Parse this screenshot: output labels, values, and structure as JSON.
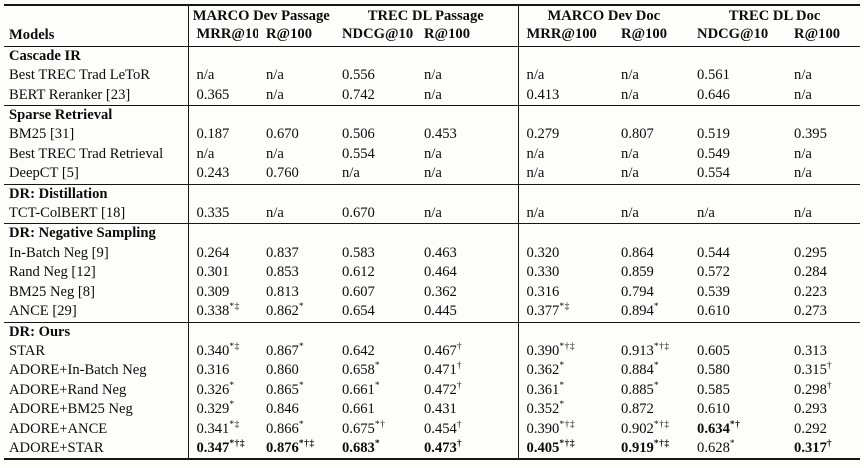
{
  "table": {
    "header": {
      "models_label": "Models",
      "groups": [
        {
          "label": "MARCO Dev Passage",
          "metrics": [
            "MRR@10",
            "R@100"
          ]
        },
        {
          "label": "TREC DL Passage",
          "metrics": [
            "NDCG@10",
            "R@100"
          ]
        },
        {
          "label": "MARCO Dev Doc",
          "metrics": [
            "MRR@100",
            "R@100"
          ]
        },
        {
          "label": "TREC DL Doc",
          "metrics": [
            "NDCG@10",
            "R@100"
          ]
        }
      ]
    },
    "sections": [
      {
        "title": "Cascade IR",
        "rows": [
          {
            "model": "Best TREC Trad LeToR",
            "cells": [
              {
                "v": "n/a"
              },
              {
                "v": "n/a"
              },
              {
                "v": "0.556"
              },
              {
                "v": "n/a"
              },
              {
                "v": "n/a"
              },
              {
                "v": "n/a"
              },
              {
                "v": "0.561"
              },
              {
                "v": "n/a"
              }
            ]
          },
          {
            "model": "BERT Reranker [23]",
            "cells": [
              {
                "v": "0.365"
              },
              {
                "v": "n/a"
              },
              {
                "v": "0.742"
              },
              {
                "v": "n/a"
              },
              {
                "v": "0.413"
              },
              {
                "v": "n/a"
              },
              {
                "v": "0.646"
              },
              {
                "v": "n/a"
              }
            ]
          }
        ]
      },
      {
        "title": "Sparse Retrieval",
        "rows": [
          {
            "model": "BM25 [31]",
            "cells": [
              {
                "v": "0.187"
              },
              {
                "v": "0.670"
              },
              {
                "v": "0.506"
              },
              {
                "v": "0.453"
              },
              {
                "v": "0.279"
              },
              {
                "v": "0.807"
              },
              {
                "v": "0.519"
              },
              {
                "v": "0.395"
              }
            ]
          },
          {
            "model": "Best TREC Trad Retrieval",
            "cells": [
              {
                "v": "n/a"
              },
              {
                "v": "n/a"
              },
              {
                "v": "0.554"
              },
              {
                "v": "n/a"
              },
              {
                "v": "n/a"
              },
              {
                "v": "n/a"
              },
              {
                "v": "0.549"
              },
              {
                "v": "n/a"
              }
            ]
          },
          {
            "model": "DeepCT [5]",
            "cells": [
              {
                "v": "0.243"
              },
              {
                "v": "0.760"
              },
              {
                "v": "n/a"
              },
              {
                "v": "n/a"
              },
              {
                "v": "n/a"
              },
              {
                "v": "n/a"
              },
              {
                "v": "0.554"
              },
              {
                "v": "n/a"
              }
            ]
          }
        ]
      },
      {
        "title": "DR: Distillation",
        "rows": [
          {
            "model": "TCT-ColBERT [18]",
            "cells": [
              {
                "v": "0.335"
              },
              {
                "v": "n/a"
              },
              {
                "v": "0.670"
              },
              {
                "v": "n/a"
              },
              {
                "v": "n/a"
              },
              {
                "v": "n/a"
              },
              {
                "v": "n/a"
              },
              {
                "v": "n/a"
              }
            ]
          }
        ]
      },
      {
        "title": "DR: Negative Sampling",
        "rows": [
          {
            "model": "In-Batch Neg [9]",
            "cells": [
              {
                "v": "0.264"
              },
              {
                "v": "0.837"
              },
              {
                "v": "0.583"
              },
              {
                "v": "0.463"
              },
              {
                "v": "0.320"
              },
              {
                "v": "0.864"
              },
              {
                "v": "0.544"
              },
              {
                "v": "0.295"
              }
            ]
          },
          {
            "model": "Rand Neg [12]",
            "cells": [
              {
                "v": "0.301"
              },
              {
                "v": "0.853"
              },
              {
                "v": "0.612"
              },
              {
                "v": "0.464"
              },
              {
                "v": "0.330"
              },
              {
                "v": "0.859"
              },
              {
                "v": "0.572"
              },
              {
                "v": "0.284"
              }
            ]
          },
          {
            "model": "BM25 Neg [8]",
            "cells": [
              {
                "v": "0.309"
              },
              {
                "v": "0.813"
              },
              {
                "v": "0.607"
              },
              {
                "v": "0.362"
              },
              {
                "v": "0.316"
              },
              {
                "v": "0.794"
              },
              {
                "v": "0.539"
              },
              {
                "v": "0.223"
              }
            ]
          },
          {
            "model": "ANCE [29]",
            "cells": [
              {
                "v": "0.338",
                "sup": "*‡"
              },
              {
                "v": "0.862",
                "sup": "*"
              },
              {
                "v": "0.654"
              },
              {
                "v": "0.445"
              },
              {
                "v": "0.377",
                "sup": "*‡"
              },
              {
                "v": "0.894",
                "sup": "*"
              },
              {
                "v": "0.610"
              },
              {
                "v": "0.273"
              }
            ]
          }
        ]
      },
      {
        "title": "DR: Ours",
        "rows": [
          {
            "model": "STAR",
            "cells": [
              {
                "v": "0.340",
                "sup": "*‡"
              },
              {
                "v": "0.867",
                "sup": "*"
              },
              {
                "v": "0.642"
              },
              {
                "v": "0.467",
                "sup": "†"
              },
              {
                "v": "0.390",
                "sup": "*†‡"
              },
              {
                "v": "0.913",
                "sup": "*†‡"
              },
              {
                "v": "0.605"
              },
              {
                "v": "0.313"
              }
            ]
          },
          {
            "model": "ADORE+In-Batch Neg",
            "cells": [
              {
                "v": "0.316"
              },
              {
                "v": "0.860"
              },
              {
                "v": "0.658",
                "sup": "*"
              },
              {
                "v": "0.471",
                "sup": "†"
              },
              {
                "v": "0.362",
                "sup": "*"
              },
              {
                "v": "0.884",
                "sup": "*"
              },
              {
                "v": "0.580"
              },
              {
                "v": "0.315",
                "sup": "†"
              }
            ]
          },
          {
            "model": "ADORE+Rand Neg",
            "cells": [
              {
                "v": "0.326",
                "sup": "*"
              },
              {
                "v": "0.865",
                "sup": "*"
              },
              {
                "v": "0.661",
                "sup": "*"
              },
              {
                "v": "0.472",
                "sup": "†"
              },
              {
                "v": "0.361",
                "sup": "*"
              },
              {
                "v": "0.885",
                "sup": "*"
              },
              {
                "v": "0.585"
              },
              {
                "v": "0.298",
                "sup": "†"
              }
            ]
          },
          {
            "model": "ADORE+BM25 Neg",
            "cells": [
              {
                "v": "0.329",
                "sup": "*"
              },
              {
                "v": "0.846"
              },
              {
                "v": "0.661"
              },
              {
                "v": "0.431"
              },
              {
                "v": "0.352",
                "sup": "*"
              },
              {
                "v": "0.872"
              },
              {
                "v": "0.610"
              },
              {
                "v": "0.293"
              }
            ]
          },
          {
            "model": "ADORE+ANCE",
            "cells": [
              {
                "v": "0.341",
                "sup": "*‡"
              },
              {
                "v": "0.866",
                "sup": "*"
              },
              {
                "v": "0.675",
                "sup": "*†"
              },
              {
                "v": "0.454",
                "sup": "†"
              },
              {
                "v": "0.390",
                "sup": "*†‡"
              },
              {
                "v": "0.902",
                "sup": "*†‡"
              },
              {
                "v": "0.634",
                "sup": "*†",
                "bold": true
              },
              {
                "v": "0.292"
              }
            ]
          },
          {
            "model": "ADORE+STAR",
            "cells": [
              {
                "v": "0.347",
                "sup": "*†‡",
                "bold": true
              },
              {
                "v": "0.876",
                "sup": "*†‡",
                "bold": true
              },
              {
                "v": "0.683",
                "sup": "*",
                "bold": true
              },
              {
                "v": "0.473",
                "sup": "†",
                "bold": true
              },
              {
                "v": "0.405",
                "sup": "*†‡",
                "bold": true
              },
              {
                "v": "0.919",
                "sup": "*†‡",
                "bold": true
              },
              {
                "v": "0.628",
                "sup": "*"
              },
              {
                "v": "0.317",
                "sup": "†",
                "bold": true
              }
            ]
          }
        ]
      }
    ]
  }
}
